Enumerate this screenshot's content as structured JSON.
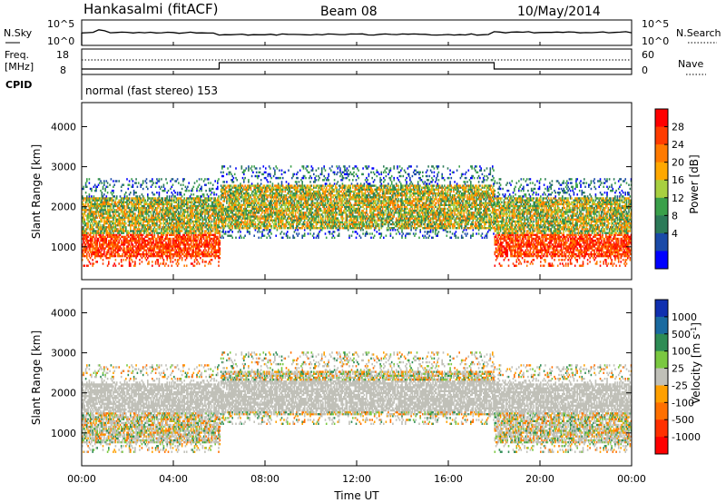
{
  "header": {
    "radar": "Hankasalmi (fitACF)",
    "beam": "Beam 08",
    "date": "10/May/2014"
  },
  "top_panel": {
    "left_label": "N.Sky",
    "left_ticks": [
      "10^5",
      "10^0"
    ],
    "right_ticks": [
      "10^5",
      "10^0"
    ],
    "right_label": "N.Search"
  },
  "freq_panel": {
    "left_label_1": "Freq.",
    "left_label_2": "[MHz]",
    "left_ticks": [
      "18",
      "8"
    ],
    "right_ticks": [
      "60",
      "0"
    ],
    "right_label": "Nave",
    "cpid_label": "CPID",
    "cpid_text": "normal (fast stereo) 153"
  },
  "power_colorbar": {
    "label": "Power [dB]",
    "ticks": [
      "28",
      "24",
      "20",
      "16",
      "12",
      "8",
      "4"
    ],
    "colors": [
      "#ff0000",
      "#ff3c00",
      "#ff7a00",
      "#ffa800",
      "#a8d040",
      "#3aa04a",
      "#2c7a58",
      "#1a4aa8",
      "#0000ff"
    ]
  },
  "velocity_colorbar": {
    "label": "Velocity [m s",
    "label_sup": "-1",
    "label_close": "]",
    "ticks": [
      "1000",
      "500",
      "100",
      "25",
      "-25",
      "-100",
      "-500",
      "-1000"
    ],
    "colors": [
      "#1030b0",
      "#1a6aa0",
      "#2e8c55",
      "#7ac840",
      "#c0c0b8",
      "#ffa000",
      "#ff7000",
      "#ff3000",
      "#ff0000"
    ]
  },
  "chart_data": [
    {
      "type": "heatmap",
      "name": "Power",
      "ylabel": "Slant Range [km]",
      "ylim": [
        180,
        4600
      ],
      "yticks": [
        1000,
        2000,
        3000,
        4000
      ],
      "xlim": [
        0,
        24
      ],
      "bands": [
        {
          "start": 0,
          "end": 6,
          "min": 700,
          "max": 2200,
          "level": "high"
        },
        {
          "start": 6,
          "end": 18,
          "min": 1400,
          "max": 2500,
          "level": "mid"
        },
        {
          "start": 18,
          "end": 24,
          "min": 700,
          "max": 2200,
          "level": "high"
        }
      ]
    },
    {
      "type": "heatmap",
      "name": "Velocity",
      "ylabel": "Slant Range [km]",
      "xlabel": "Time UT",
      "ylim": [
        180,
        4600
      ],
      "yticks": [
        1000,
        2000,
        3000,
        4000
      ],
      "xlim": [
        0,
        24
      ],
      "xticks": [
        "00:00",
        "04:00",
        "08:00",
        "12:00",
        "16:00",
        "20:00",
        "00:00"
      ]
    }
  ]
}
